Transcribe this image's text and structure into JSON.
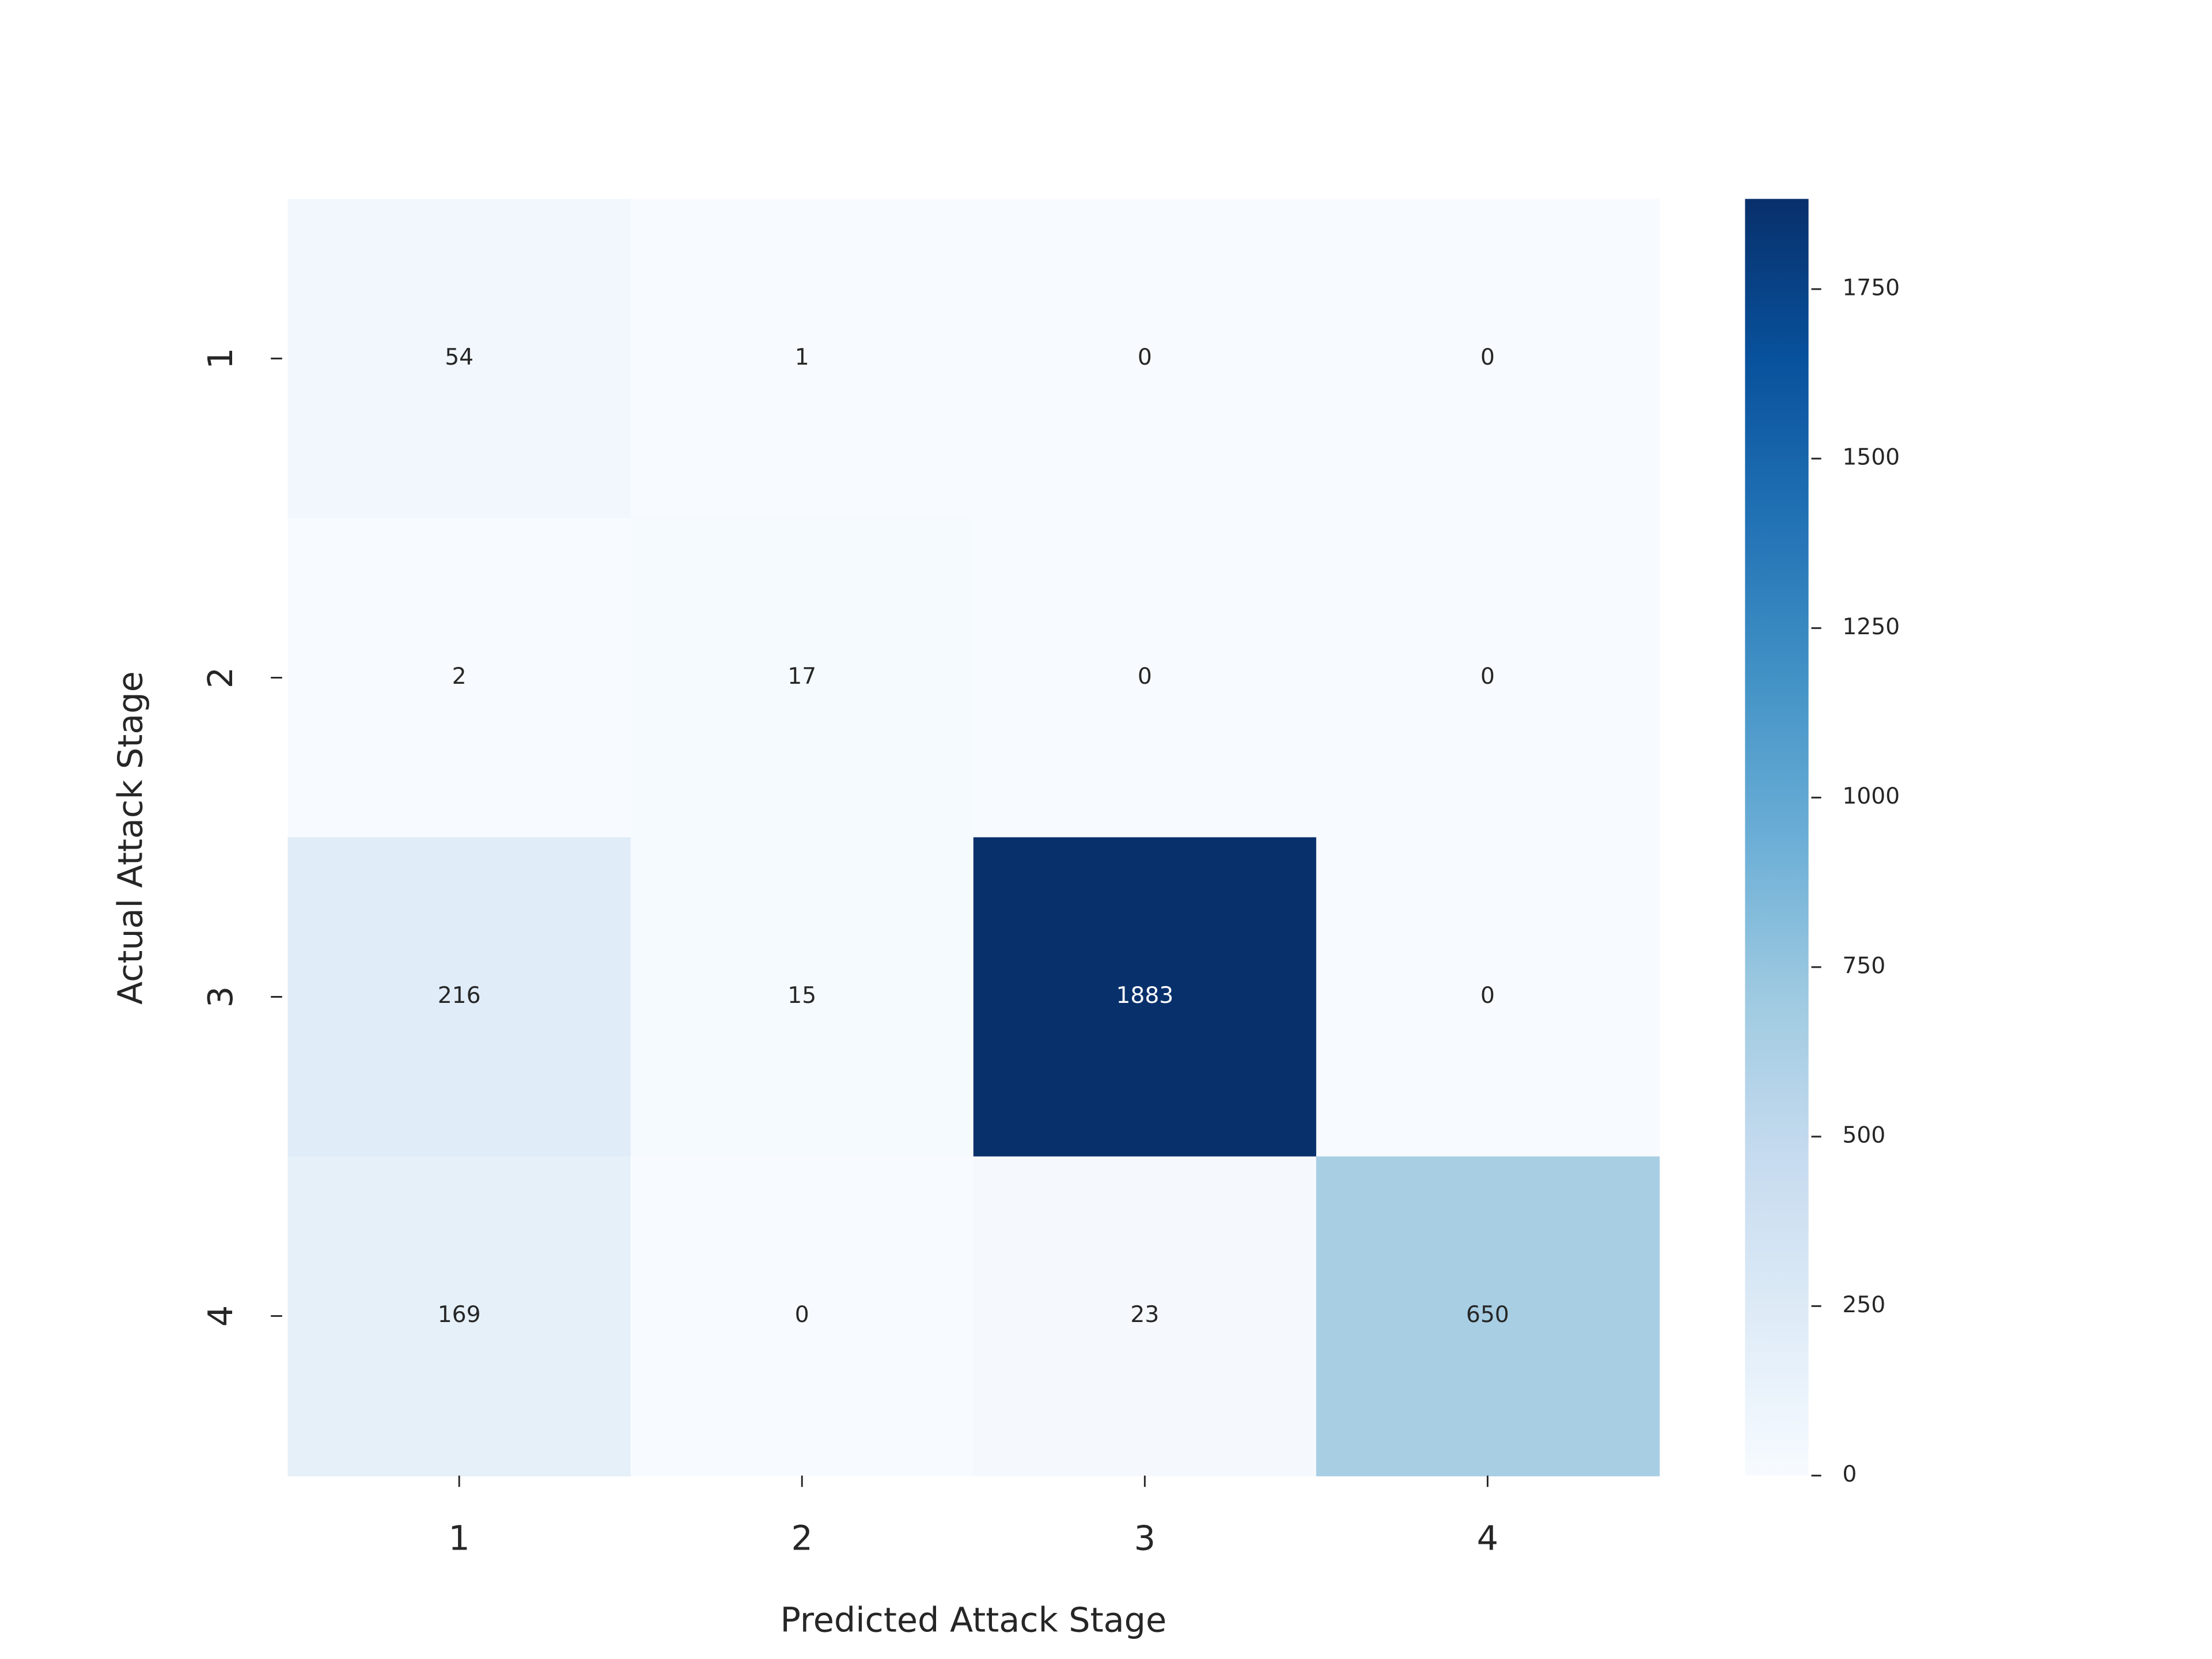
{
  "chart_data": {
    "type": "heatmap",
    "x_label": "Predicted Attack Stage",
    "y_label": "Actual Attack Stage",
    "x_categories": [
      "1",
      "2",
      "3",
      "4"
    ],
    "y_categories": [
      "1",
      "2",
      "3",
      "4"
    ],
    "values": [
      [
        54,
        1,
        0,
        0
      ],
      [
        2,
        17,
        0,
        0
      ],
      [
        216,
        15,
        1883,
        0
      ],
      [
        169,
        0,
        23,
        650
      ]
    ],
    "cmap": "Blues",
    "clim": [
      0,
      1883
    ],
    "cticks": [
      0,
      250,
      500,
      750,
      1000,
      1250,
      1500,
      1750
    ]
  }
}
